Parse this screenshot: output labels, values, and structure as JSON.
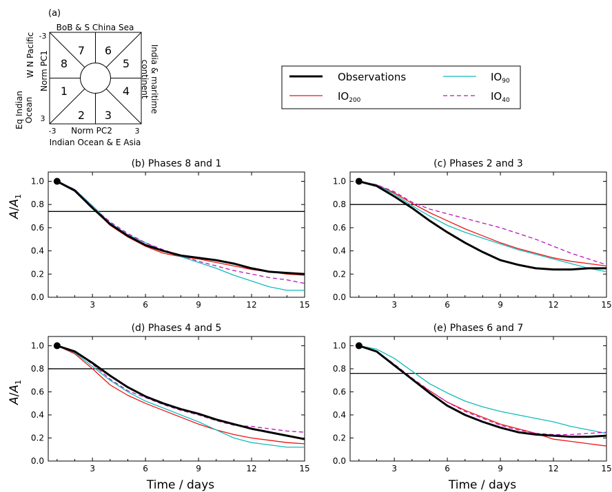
{
  "phase_diagram": {
    "panel_label": "(a)",
    "top_label": "BoB & S China Sea",
    "bottom_label": "Indian Ocean & E Asia",
    "left_label_outer": "Eq Indian",
    "left_label_inner": "Ocean",
    "left_upper_label": "W N Pacific",
    "y_axis_label": "Norm PC1",
    "right_label_outer": "India & maritime",
    "right_label_inner": "continent",
    "x_axis_label": "Norm PC2",
    "x_ticks": [
      "-3",
      "3"
    ],
    "y_ticks": [
      "-3",
      "3"
    ],
    "phases": [
      "1",
      "2",
      "3",
      "4",
      "5",
      "6",
      "7",
      "8"
    ]
  },
  "legend": {
    "entries": [
      {
        "label": "Observations",
        "color": "#000000",
        "dash": "",
        "width": 3
      },
      {
        "label": "IO",
        "sub": "200",
        "color": "#ee1111",
        "dash": "",
        "width": 1.3
      },
      {
        "label": "IO",
        "sub": "90",
        "color": "#11bbbb",
        "dash": "",
        "width": 1.3
      },
      {
        "label": "IO",
        "sub": "40",
        "color": "#bb11bb",
        "dash": "6,4",
        "width": 1.3
      }
    ]
  },
  "axes": {
    "ylabel_main": "A",
    "ylabel_sub_letter": "A",
    "ylabel_sub_index": "1",
    "xlabel": "Time  /  days",
    "xticks": [
      3,
      6,
      9,
      12,
      15
    ],
    "yticks": [
      "0.0",
      "0.2",
      "0.4",
      "0.6",
      "0.8",
      "1.0"
    ]
  },
  "chart_data": [
    {
      "type": "line",
      "title": "(b) Phases 8 and 1",
      "xlim": [
        0.5,
        15
      ],
      "ylim": [
        0,
        1.08
      ],
      "hline": 0.74,
      "x": [
        1,
        2,
        3,
        4,
        5,
        6,
        7,
        8,
        9,
        10,
        11,
        12,
        13,
        14,
        15
      ],
      "series": [
        {
          "name": "Observations",
          "values": [
            1.0,
            0.92,
            0.77,
            0.63,
            0.53,
            0.45,
            0.4,
            0.36,
            0.34,
            0.32,
            0.29,
            0.25,
            0.22,
            0.21,
            0.2
          ]
        },
        {
          "name": "IO200",
          "values": [
            1.0,
            0.92,
            0.77,
            0.62,
            0.52,
            0.44,
            0.38,
            0.35,
            0.33,
            0.3,
            0.27,
            0.24,
            0.22,
            0.2,
            0.19
          ]
        },
        {
          "name": "IO90",
          "values": [
            1.0,
            0.93,
            0.79,
            0.64,
            0.54,
            0.47,
            0.4,
            0.35,
            0.3,
            0.25,
            0.19,
            0.14,
            0.09,
            0.06,
            0.06
          ]
        },
        {
          "name": "IO40",
          "values": [
            1.0,
            0.93,
            0.78,
            0.65,
            0.55,
            0.47,
            0.41,
            0.36,
            0.31,
            0.27,
            0.23,
            0.2,
            0.17,
            0.15,
            0.12
          ]
        }
      ]
    },
    {
      "type": "line",
      "title": "(c) Phases 2 and 3",
      "xlim": [
        0.5,
        15
      ],
      "ylim": [
        0,
        1.08
      ],
      "hline": 0.8,
      "x": [
        1,
        2,
        3,
        4,
        5,
        6,
        7,
        8,
        9,
        10,
        11,
        12,
        13,
        14,
        15
      ],
      "series": [
        {
          "name": "Observations",
          "values": [
            1.0,
            0.96,
            0.87,
            0.77,
            0.66,
            0.56,
            0.47,
            0.39,
            0.32,
            0.28,
            0.25,
            0.24,
            0.24,
            0.25,
            0.25
          ]
        },
        {
          "name": "IO200",
          "values": [
            1.0,
            0.97,
            0.9,
            0.81,
            0.73,
            0.66,
            0.59,
            0.53,
            0.47,
            0.42,
            0.38,
            0.34,
            0.31,
            0.29,
            0.27
          ]
        },
        {
          "name": "IO90",
          "values": [
            1.0,
            0.97,
            0.89,
            0.79,
            0.7,
            0.62,
            0.56,
            0.51,
            0.46,
            0.41,
            0.37,
            0.33,
            0.29,
            0.25,
            0.22
          ]
        },
        {
          "name": "IO40",
          "values": [
            1.0,
            0.97,
            0.91,
            0.82,
            0.76,
            0.72,
            0.68,
            0.64,
            0.6,
            0.55,
            0.5,
            0.44,
            0.38,
            0.33,
            0.28
          ]
        }
      ]
    },
    {
      "type": "line",
      "title": "(d) Phases 4 and 5",
      "xlim": [
        0.5,
        15
      ],
      "ylim": [
        0,
        1.08
      ],
      "hline": 0.8,
      "x": [
        1,
        2,
        3,
        4,
        5,
        6,
        7,
        8,
        9,
        10,
        11,
        12,
        13,
        14,
        15
      ],
      "series": [
        {
          "name": "Observations",
          "values": [
            1.0,
            0.95,
            0.85,
            0.74,
            0.64,
            0.56,
            0.5,
            0.45,
            0.41,
            0.36,
            0.32,
            0.28,
            0.25,
            0.22,
            0.19
          ]
        },
        {
          "name": "IO200",
          "values": [
            1.0,
            0.93,
            0.8,
            0.66,
            0.57,
            0.5,
            0.44,
            0.38,
            0.32,
            0.27,
            0.23,
            0.2,
            0.18,
            0.16,
            0.15
          ]
        },
        {
          "name": "IO90",
          "values": [
            1.0,
            0.94,
            0.82,
            0.7,
            0.6,
            0.52,
            0.46,
            0.4,
            0.34,
            0.27,
            0.2,
            0.16,
            0.14,
            0.12,
            0.12
          ]
        },
        {
          "name": "IO40",
          "values": [
            1.0,
            0.95,
            0.84,
            0.71,
            0.61,
            0.55,
            0.49,
            0.44,
            0.4,
            0.35,
            0.31,
            0.3,
            0.28,
            0.26,
            0.25
          ]
        }
      ]
    },
    {
      "type": "line",
      "title": "(e) Phases 6 and 7",
      "xlim": [
        0.5,
        15
      ],
      "ylim": [
        0,
        1.08
      ],
      "hline": 0.76,
      "x": [
        1,
        2,
        3,
        4,
        5,
        6,
        7,
        8,
        9,
        10,
        11,
        12,
        13,
        14,
        15
      ],
      "series": [
        {
          "name": "Observations",
          "values": [
            1.0,
            0.95,
            0.83,
            0.71,
            0.59,
            0.48,
            0.4,
            0.34,
            0.29,
            0.25,
            0.23,
            0.22,
            0.21,
            0.21,
            0.22
          ]
        },
        {
          "name": "IO200",
          "values": [
            1.0,
            0.95,
            0.83,
            0.71,
            0.61,
            0.51,
            0.44,
            0.38,
            0.32,
            0.28,
            0.24,
            0.19,
            0.17,
            0.15,
            0.13
          ]
        },
        {
          "name": "IO90",
          "values": [
            1.0,
            0.97,
            0.89,
            0.78,
            0.67,
            0.59,
            0.52,
            0.47,
            0.43,
            0.4,
            0.37,
            0.34,
            0.3,
            0.27,
            0.24
          ]
        },
        {
          "name": "IO40",
          "values": [
            1.0,
            0.95,
            0.84,
            0.72,
            0.61,
            0.51,
            0.43,
            0.37,
            0.31,
            0.27,
            0.24,
            0.23,
            0.23,
            0.24,
            0.25
          ]
        }
      ]
    }
  ]
}
